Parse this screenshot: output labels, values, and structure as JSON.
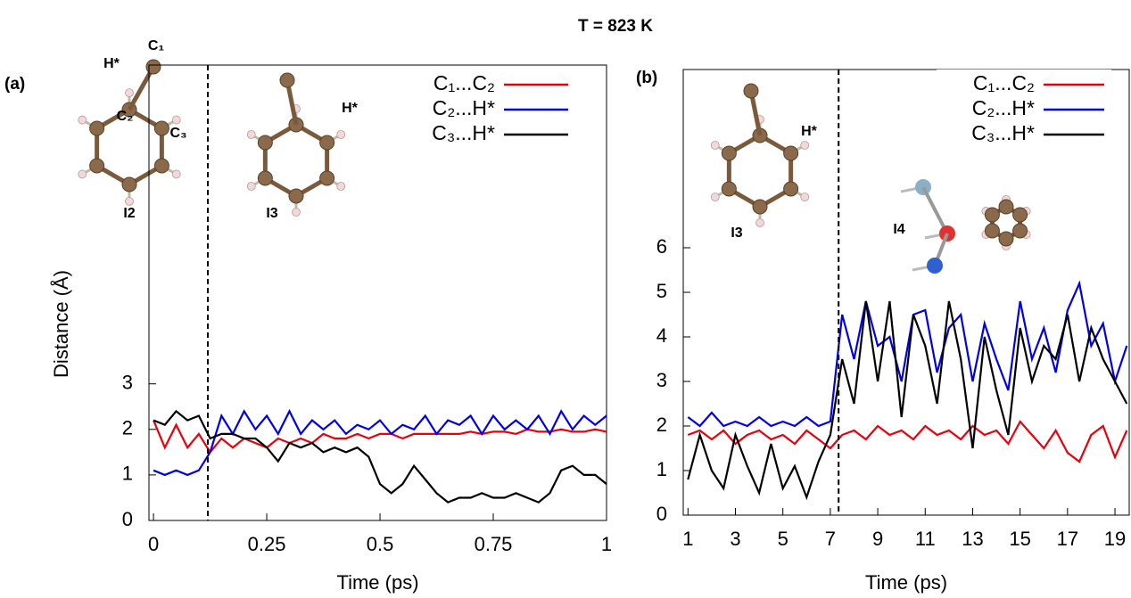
{
  "title": "T = 823 K",
  "chart_data": [
    {
      "type": "line",
      "panel_label": "(a)",
      "xlabel": "Time (ps)",
      "ylabel": "Distance (Å)",
      "xlim": [
        -0.01,
        1
      ],
      "ylim": [
        0,
        10
      ],
      "xticks": [
        0,
        0.25,
        0.5,
        0.75,
        1
      ],
      "yticks": [
        0,
        1,
        2,
        3
      ],
      "vline": 0.12,
      "legend": "upper right",
      "grid": false,
      "annotations": [
        "C₁",
        "H*",
        "C₂",
        "C₃",
        "I2",
        "I3",
        "H*"
      ],
      "x": [
        0,
        0.025,
        0.05,
        0.075,
        0.1,
        0.125,
        0.15,
        0.175,
        0.2,
        0.225,
        0.25,
        0.275,
        0.3,
        0.325,
        0.35,
        0.375,
        0.4,
        0.425,
        0.45,
        0.475,
        0.5,
        0.525,
        0.55,
        0.575,
        0.6,
        0.625,
        0.65,
        0.675,
        0.7,
        0.725,
        0.75,
        0.775,
        0.8,
        0.825,
        0.85,
        0.875,
        0.9,
        0.925,
        0.95,
        0.975,
        1
      ],
      "series": [
        {
          "name": "C₁...C₂",
          "color": "#e8000b",
          "values": [
            2.2,
            1.6,
            2.1,
            1.6,
            1.9,
            1.5,
            1.8,
            1.6,
            1.8,
            1.7,
            1.6,
            1.8,
            1.7,
            1.8,
            1.7,
            1.9,
            1.8,
            1.8,
            1.9,
            1.8,
            1.9,
            1.9,
            1.8,
            1.9,
            1.9,
            1.9,
            1.9,
            1.9,
            1.95,
            1.9,
            1.95,
            1.95,
            1.9,
            2.0,
            1.95,
            1.95,
            2.0,
            1.95,
            1.95,
            2.0,
            1.95
          ]
        },
        {
          "name": "C₂...H*",
          "color": "#0000e8",
          "values": [
            1.1,
            1.0,
            1.1,
            1.0,
            1.1,
            1.5,
            2.3,
            1.9,
            2.4,
            2.0,
            2.3,
            1.9,
            2.4,
            1.9,
            2.2,
            2.0,
            2.2,
            1.9,
            2.1,
            2.0,
            2.2,
            1.9,
            2.1,
            2.0,
            2.3,
            1.9,
            2.2,
            2.1,
            2.3,
            1.9,
            2.3,
            2.0,
            2.2,
            2.0,
            2.3,
            1.9,
            2.4,
            2.0,
            2.3,
            2.1,
            2.3
          ]
        },
        {
          "name": "C₃...H*",
          "color": "#000000",
          "values": [
            2.2,
            2.1,
            2.4,
            2.2,
            2.3,
            1.8,
            1.9,
            1.9,
            1.8,
            1.8,
            1.6,
            1.3,
            1.7,
            1.6,
            1.7,
            1.5,
            1.6,
            1.5,
            1.6,
            1.4,
            0.8,
            0.6,
            0.8,
            1.2,
            0.9,
            0.6,
            0.4,
            0.5,
            0.5,
            0.6,
            0.5,
            0.5,
            0.6,
            0.5,
            0.4,
            0.6,
            1.1,
            1.2,
            1.0,
            1.0,
            0.8
          ]
        }
      ]
    },
    {
      "type": "line",
      "panel_label": "(b)",
      "xlabel": "Time (ps)",
      "xlim": [
        0.8,
        19.6
      ],
      "ylim": [
        0,
        10
      ],
      "xticks": [
        1,
        3,
        5,
        7,
        9,
        11,
        13,
        15,
        17,
        19
      ],
      "yticks": [
        0,
        1,
        2,
        3,
        4,
        5,
        6
      ],
      "vline": 7.35,
      "legend": "upper right",
      "grid": false,
      "annotations": [
        "H*",
        "I3",
        "I4"
      ],
      "x": [
        1,
        1.5,
        2,
        2.5,
        3,
        3.5,
        4,
        4.5,
        5,
        5.5,
        6,
        6.5,
        7,
        7.5,
        8,
        8.5,
        9,
        9.5,
        10,
        10.5,
        11,
        11.5,
        12,
        12.5,
        13,
        13.5,
        14,
        14.5,
        15,
        15.5,
        16,
        16.5,
        17,
        17.5,
        18,
        18.5,
        19,
        19.5
      ],
      "series": [
        {
          "name": "C₁...C₂",
          "color": "#e8000b",
          "values": [
            1.8,
            1.9,
            1.7,
            1.9,
            1.6,
            1.8,
            1.9,
            1.7,
            1.8,
            1.6,
            1.9,
            1.7,
            1.5,
            1.8,
            1.9,
            1.7,
            2.0,
            1.8,
            1.9,
            1.7,
            2.0,
            1.8,
            1.9,
            1.7,
            2.0,
            1.8,
            1.9,
            1.6,
            2.1,
            1.8,
            1.5,
            1.9,
            1.4,
            1.2,
            1.8,
            2.0,
            1.3,
            1.9
          ]
        },
        {
          "name": "C₂...H*",
          "color": "#0000e8",
          "values": [
            2.2,
            2.0,
            2.3,
            2.0,
            2.1,
            2.0,
            2.2,
            2.0,
            2.1,
            2.0,
            2.2,
            2.0,
            2.1,
            4.5,
            3.5,
            4.8,
            3.8,
            4.0,
            3.0,
            4.5,
            4.6,
            3.2,
            4.2,
            4.5,
            3.0,
            4.3,
            3.5,
            2.8,
            4.8,
            3.5,
            4.2,
            3.2,
            4.6,
            5.2,
            3.8,
            4.3,
            3.0,
            3.8
          ]
        },
        {
          "name": "C₃...H*",
          "color": "#000000",
          "values": [
            0.8,
            1.8,
            1.0,
            0.6,
            1.8,
            1.1,
            0.5,
            1.6,
            0.6,
            1.1,
            0.4,
            1.2,
            1.8,
            3.5,
            2.5,
            4.8,
            3.0,
            4.8,
            2.2,
            4.5,
            3.8,
            2.5,
            4.8,
            3.5,
            1.5,
            4.0,
            2.8,
            1.8,
            4.2,
            3.0,
            3.8,
            3.5,
            4.5,
            3.0,
            4.2,
            3.5,
            3.0,
            2.5
          ]
        }
      ]
    }
  ]
}
